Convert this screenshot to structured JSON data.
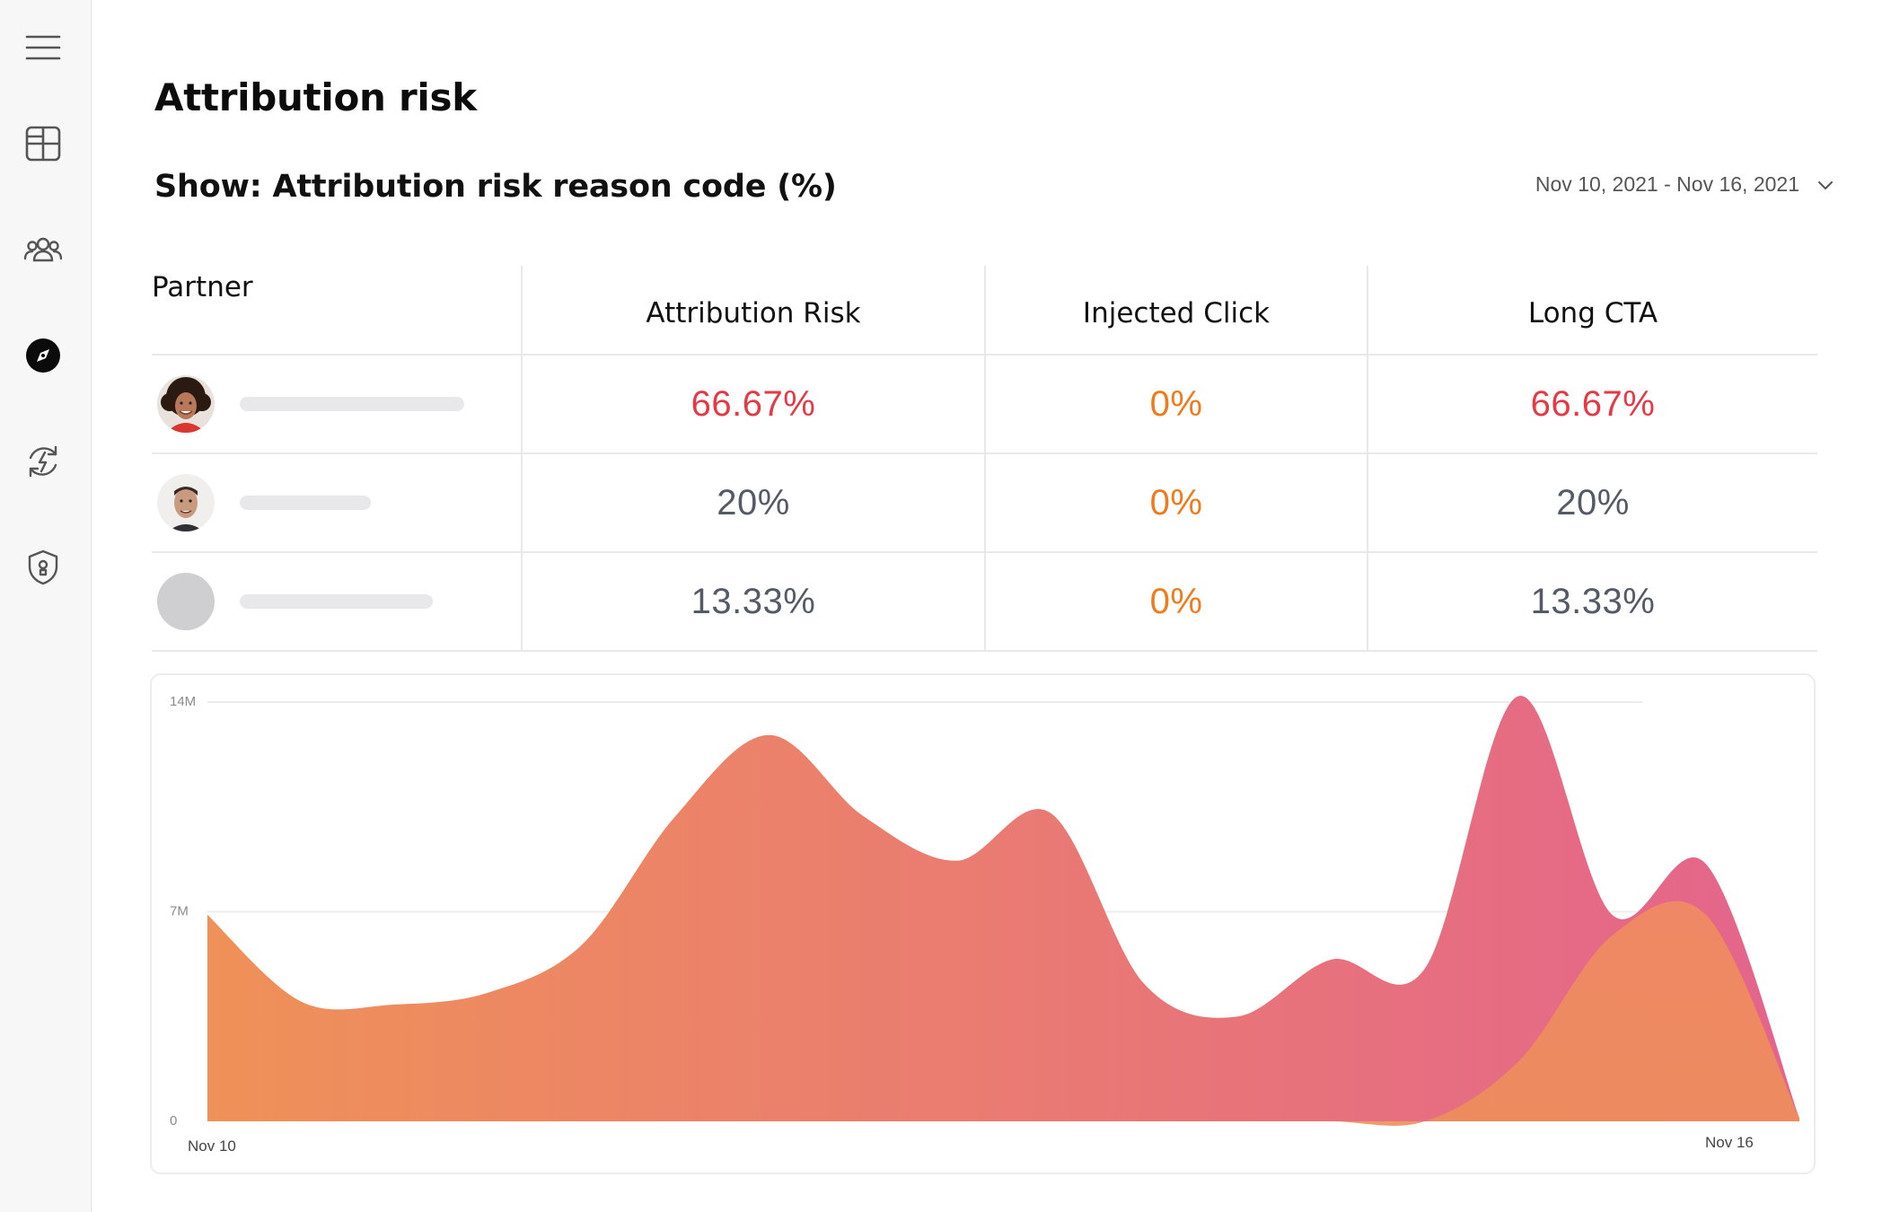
{
  "sidebar": {
    "items": [
      {
        "icon": "menu-icon"
      },
      {
        "icon": "dashboard-icon"
      },
      {
        "icon": "users-icon"
      },
      {
        "icon": "compass-icon",
        "active": true
      },
      {
        "icon": "lightning-refresh-icon"
      },
      {
        "icon": "shield-lock-icon"
      }
    ]
  },
  "page": {
    "title": "Attribution risk",
    "show_label": "Show: Attribution risk reason code (%)",
    "date_range": "Nov 10, 2021 - Nov 16, 2021"
  },
  "table": {
    "headers": [
      "Partner",
      "Attribution Risk",
      "Injected Click",
      "Long CTA"
    ],
    "rows": [
      {
        "partner_avatar": "woman-curly-hair",
        "attribution_risk": "66.67%",
        "injected_click": "0%",
        "long_cta": "66.67%",
        "attribution_risk_level": "high",
        "long_cta_level": "high"
      },
      {
        "partner_avatar": "man-short-hair",
        "attribution_risk": "20%",
        "injected_click": "0%",
        "long_cta": "20%",
        "attribution_risk_level": "normal",
        "long_cta_level": "normal"
      },
      {
        "partner_avatar": "placeholder",
        "attribution_risk": "13.33%",
        "injected_click": "0%",
        "long_cta": "13.33%",
        "attribution_risk_level": "normal",
        "long_cta_level": "normal"
      }
    ]
  },
  "colors": {
    "high": "#e63946",
    "injected": "#f07b1d",
    "normal": "#555b66",
    "area_start": "#ef9158",
    "area_end": "#e4648c"
  },
  "chart_data": {
    "type": "area",
    "y_ticks": [
      "14M",
      "7M",
      "0"
    ],
    "x_labels": [
      "Nov 10",
      "Nov 16"
    ],
    "ylim": [
      0,
      14
    ],
    "grid": true,
    "series": [
      {
        "values": [
          6.9,
          4.0,
          3.9,
          4.3,
          5.9,
          10.2,
          12.9,
          10.2,
          8.7,
          10.3,
          4.6,
          3.5,
          5.4,
          5.1,
          14.2,
          6.9,
          8.6,
          0.1
        ]
      },
      {
        "values": [
          0,
          0,
          0,
          0,
          0,
          0,
          0,
          0,
          0,
          0,
          0,
          0,
          0,
          0,
          2.0,
          6.2,
          6.9,
          0.1
        ]
      }
    ]
  }
}
